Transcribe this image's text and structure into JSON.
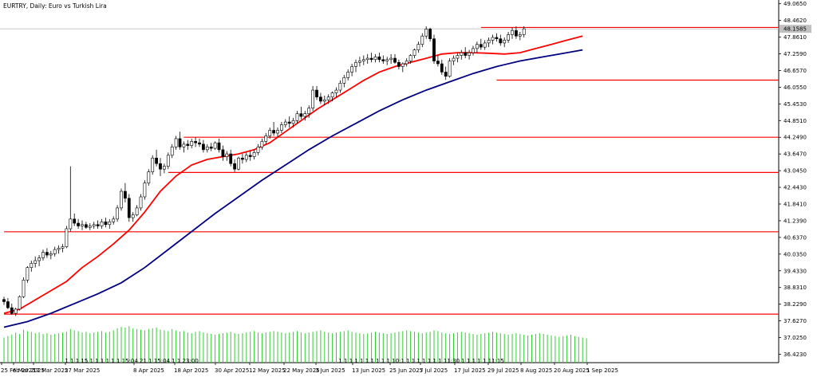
{
  "chart_data": {
    "type": "candlestick",
    "title": "EURTRY, Daily:  Euro vs Turkish Lira",
    "current_price_label": "48.1585",
    "y_ticks": [
      "49.0650",
      "48.4620",
      "47.8610",
      "47.2590",
      "46.6570",
      "46.0550",
      "45.4530",
      "44.8510",
      "44.2490",
      "43.6470",
      "43.0450",
      "42.4430",
      "41.8410",
      "41.2390",
      "40.6370",
      "40.0350",
      "39.4330",
      "38.8310",
      "38.2290",
      "37.6270",
      "37.0250",
      "36.4230"
    ],
    "x_labels": [
      "25 Feb 2025",
      "6 Mar 2025",
      "17 Mar 2025",
      "27 Mar 2025",
      "8 Apr 2025",
      "18 Apr 2025",
      "30 Apr 2025",
      "12 May 2025",
      "22 May 2025",
      "3 Jun 2025",
      "13 Jun 2025",
      "25 Jun 2025",
      "7 Jul 2025",
      "17 Jul 2025",
      "29 Jul 2025",
      "8 Aug 2025",
      "20 Aug 2025",
      "1 Sep 2025"
    ],
    "ylim": [
      36.12,
      49.2
    ],
    "levels": [
      {
        "price": 48.21,
        "from_day": 122,
        "color": "#ff0000"
      },
      {
        "price": 46.31,
        "from_day": 126,
        "color": "#ff0000"
      },
      {
        "price": 44.25,
        "from_day": 46,
        "color": "#ff0000"
      },
      {
        "price": 42.98,
        "from_day": 42,
        "color": "#ff0000"
      },
      {
        "price": 40.84,
        "from_day": 0,
        "color": "#ff0000"
      },
      {
        "price": 37.87,
        "from_day": 0,
        "color": "#ff0000"
      }
    ],
    "candles": [
      [
        38.4,
        38.5,
        38.2,
        38.32
      ],
      [
        38.32,
        38.45,
        38.05,
        38.1
      ],
      [
        38.1,
        38.25,
        37.85,
        37.9
      ],
      [
        37.9,
        38.1,
        37.8,
        38.05
      ],
      [
        38.05,
        38.55,
        38.0,
        38.5
      ],
      [
        38.5,
        39.2,
        38.45,
        39.1
      ],
      [
        39.1,
        39.6,
        39.0,
        39.55
      ],
      [
        39.55,
        39.8,
        39.4,
        39.7
      ],
      [
        39.7,
        39.95,
        39.55,
        39.8
      ],
      [
        39.8,
        40.0,
        39.6,
        39.9
      ],
      [
        39.9,
        40.2,
        39.8,
        40.1
      ],
      [
        40.1,
        40.25,
        39.9,
        40.0
      ],
      [
        40.0,
        40.15,
        39.85,
        40.05
      ],
      [
        40.05,
        40.3,
        39.95,
        40.2
      ],
      [
        40.2,
        40.35,
        40.05,
        40.25
      ],
      [
        40.25,
        40.4,
        40.1,
        40.3
      ],
      [
        40.3,
        41.05,
        40.25,
        40.95
      ],
      [
        40.95,
        43.2,
        40.85,
        41.3
      ],
      [
        41.3,
        41.5,
        41.05,
        41.15
      ],
      [
        41.15,
        41.3,
        40.95,
        41.05
      ],
      [
        41.05,
        41.25,
        40.9,
        41.1
      ],
      [
        41.1,
        41.2,
        40.95,
        41.0
      ],
      [
        41.0,
        41.15,
        40.9,
        41.05
      ],
      [
        41.05,
        41.2,
        40.95,
        41.1
      ],
      [
        41.1,
        41.25,
        40.95,
        41.05
      ],
      [
        41.05,
        41.3,
        40.95,
        41.2
      ],
      [
        41.2,
        41.35,
        41.0,
        41.1
      ],
      [
        41.1,
        41.3,
        40.95,
        41.2
      ],
      [
        41.2,
        41.4,
        41.1,
        41.3
      ],
      [
        41.3,
        41.8,
        41.2,
        41.7
      ],
      [
        41.7,
        42.4,
        41.6,
        42.3
      ],
      [
        42.3,
        42.6,
        41.9,
        42.05
      ],
      [
        42.05,
        42.2,
        41.2,
        41.35
      ],
      [
        41.35,
        41.55,
        41.2,
        41.45
      ],
      [
        41.45,
        41.8,
        41.4,
        41.7
      ],
      [
        41.7,
        42.2,
        41.6,
        42.1
      ],
      [
        42.1,
        42.7,
        42.0,
        42.6
      ],
      [
        42.6,
        43.1,
        42.5,
        43.0
      ],
      [
        43.0,
        43.6,
        42.9,
        43.5
      ],
      [
        43.5,
        43.8,
        43.2,
        43.3
      ],
      [
        43.3,
        43.5,
        42.85,
        43.1
      ],
      [
        43.1,
        43.3,
        42.95,
        43.2
      ],
      [
        43.2,
        43.7,
        43.1,
        43.6
      ],
      [
        43.6,
        44.0,
        43.5,
        43.9
      ],
      [
        43.9,
        44.3,
        43.8,
        44.2
      ],
      [
        44.2,
        44.45,
        43.8,
        43.9
      ],
      [
        43.9,
        44.1,
        43.7,
        44.0
      ],
      [
        44.0,
        44.15,
        43.8,
        43.95
      ],
      [
        43.95,
        44.2,
        43.85,
        44.1
      ],
      [
        44.1,
        44.25,
        43.9,
        44.05
      ],
      [
        44.05,
        44.2,
        43.9,
        44.0
      ],
      [
        44.0,
        44.15,
        43.7,
        43.8
      ],
      [
        43.8,
        44.0,
        43.7,
        43.9
      ],
      [
        43.9,
        44.05,
        43.75,
        43.85
      ],
      [
        43.85,
        44.1,
        43.8,
        44.05
      ],
      [
        44.05,
        44.2,
        43.7,
        43.8
      ],
      [
        43.8,
        43.95,
        43.4,
        43.55
      ],
      [
        43.55,
        43.75,
        43.4,
        43.65
      ],
      [
        43.65,
        43.8,
        43.2,
        43.3
      ],
      [
        43.3,
        43.45,
        43.0,
        43.1
      ],
      [
        43.1,
        43.55,
        43.05,
        43.5
      ],
      [
        43.5,
        43.65,
        43.3,
        43.45
      ],
      [
        43.45,
        43.7,
        43.35,
        43.6
      ],
      [
        43.6,
        43.75,
        43.4,
        43.55
      ],
      [
        43.55,
        43.8,
        43.45,
        43.7
      ],
      [
        43.7,
        44.0,
        43.6,
        43.9
      ],
      [
        43.9,
        44.2,
        43.8,
        44.1
      ],
      [
        44.1,
        44.4,
        44.0,
        44.3
      ],
      [
        44.3,
        44.6,
        44.2,
        44.5
      ],
      [
        44.5,
        44.8,
        44.3,
        44.4
      ],
      [
        44.4,
        44.6,
        44.25,
        44.5
      ],
      [
        44.5,
        44.8,
        44.4,
        44.7
      ],
      [
        44.7,
        44.9,
        44.6,
        44.8
      ],
      [
        44.8,
        45.0,
        44.6,
        44.75
      ],
      [
        44.75,
        44.95,
        44.6,
        44.85
      ],
      [
        44.85,
        45.2,
        44.75,
        45.1
      ],
      [
        45.1,
        45.35,
        44.9,
        45.0
      ],
      [
        45.0,
        45.2,
        44.85,
        45.1
      ],
      [
        45.1,
        45.4,
        44.95,
        45.3
      ],
      [
        45.3,
        46.1,
        45.2,
        45.95
      ],
      [
        45.95,
        46.1,
        45.6,
        45.7
      ],
      [
        45.7,
        45.85,
        45.45,
        45.55
      ],
      [
        45.55,
        45.75,
        45.4,
        45.6
      ],
      [
        45.6,
        45.8,
        45.45,
        45.7
      ],
      [
        45.7,
        45.9,
        45.55,
        45.85
      ],
      [
        45.85,
        46.05,
        45.7,
        45.95
      ],
      [
        45.95,
        46.3,
        45.85,
        46.2
      ],
      [
        46.2,
        46.5,
        46.05,
        46.4
      ],
      [
        46.4,
        46.7,
        46.3,
        46.6
      ],
      [
        46.6,
        46.9,
        46.45,
        46.8
      ],
      [
        46.8,
        47.05,
        46.6,
        46.95
      ],
      [
        46.95,
        47.15,
        46.8,
        47.0
      ],
      [
        47.0,
        47.2,
        46.85,
        47.05
      ],
      [
        47.05,
        47.25,
        46.9,
        47.1
      ],
      [
        47.1,
        47.3,
        46.95,
        47.05
      ],
      [
        47.05,
        47.25,
        46.95,
        47.15
      ],
      [
        47.15,
        47.3,
        46.95,
        47.05
      ],
      [
        47.05,
        47.2,
        46.9,
        47.0
      ],
      [
        47.0,
        47.15,
        46.85,
        47.05
      ],
      [
        47.05,
        47.25,
        46.9,
        47.1
      ],
      [
        47.1,
        47.25,
        46.9,
        46.95
      ],
      [
        46.95,
        47.05,
        46.7,
        46.8
      ],
      [
        46.8,
        46.95,
        46.6,
        46.9
      ],
      [
        46.9,
        47.1,
        46.8,
        47.0
      ],
      [
        47.0,
        47.25,
        46.9,
        47.2
      ],
      [
        47.2,
        47.45,
        47.1,
        47.4
      ],
      [
        47.4,
        47.7,
        47.3,
        47.6
      ],
      [
        47.6,
        48.0,
        47.5,
        47.9
      ],
      [
        47.9,
        48.25,
        47.8,
        48.15
      ],
      [
        48.15,
        48.2,
        47.7,
        47.8
      ],
      [
        47.8,
        47.95,
        46.9,
        47.0
      ],
      [
        47.0,
        47.2,
        46.8,
        46.9
      ],
      [
        46.9,
        47.05,
        46.5,
        46.6
      ],
      [
        46.6,
        46.8,
        46.32,
        46.45
      ],
      [
        46.45,
        47.1,
        46.4,
        47.0
      ],
      [
        47.0,
        47.2,
        46.85,
        47.1
      ],
      [
        47.1,
        47.3,
        46.95,
        47.2
      ],
      [
        47.2,
        47.4,
        47.05,
        47.3
      ],
      [
        47.3,
        47.5,
        47.1,
        47.2
      ],
      [
        47.2,
        47.4,
        47.05,
        47.3
      ],
      [
        47.3,
        47.55,
        47.2,
        47.45
      ],
      [
        47.45,
        47.7,
        47.3,
        47.6
      ],
      [
        47.6,
        47.8,
        47.4,
        47.5
      ],
      [
        47.5,
        47.75,
        47.4,
        47.65
      ],
      [
        47.65,
        47.85,
        47.5,
        47.75
      ],
      [
        47.75,
        47.95,
        47.6,
        47.85
      ],
      [
        47.85,
        48.0,
        47.7,
        47.8
      ],
      [
        47.8,
        47.95,
        47.55,
        47.65
      ],
      [
        47.65,
        47.85,
        47.5,
        47.75
      ],
      [
        47.75,
        48.05,
        47.65,
        47.95
      ],
      [
        47.95,
        48.2,
        47.8,
        48.1
      ],
      [
        48.1,
        48.25,
        47.8,
        47.9
      ],
      [
        47.9,
        48.05,
        47.75,
        47.95
      ],
      [
        47.95,
        48.25,
        47.85,
        48.16
      ]
    ],
    "ma_red": [
      [
        0,
        37.9
      ],
      [
        4,
        38.05
      ],
      [
        10,
        38.55
      ],
      [
        16,
        39.05
      ],
      [
        20,
        39.55
      ],
      [
        24,
        39.95
      ],
      [
        28,
        40.4
      ],
      [
        32,
        40.9
      ],
      [
        36,
        41.55
      ],
      [
        40,
        42.3
      ],
      [
        44,
        42.85
      ],
      [
        48,
        43.25
      ],
      [
        52,
        43.45
      ],
      [
        56,
        43.55
      ],
      [
        60,
        43.65
      ],
      [
        64,
        43.8
      ],
      [
        68,
        44.05
      ],
      [
        72,
        44.45
      ],
      [
        76,
        44.85
      ],
      [
        80,
        45.25
      ],
      [
        84,
        45.6
      ],
      [
        88,
        45.95
      ],
      [
        92,
        46.3
      ],
      [
        96,
        46.6
      ],
      [
        100,
        46.8
      ],
      [
        104,
        46.95
      ],
      [
        108,
        47.1
      ],
      [
        112,
        47.25
      ],
      [
        116,
        47.3
      ],
      [
        120,
        47.3
      ],
      [
        124,
        47.28
      ],
      [
        128,
        47.25
      ],
      [
        132,
        47.3
      ],
      [
        136,
        47.45
      ],
      [
        140,
        47.6
      ],
      [
        144,
        47.75
      ],
      [
        148,
        47.9
      ]
    ],
    "ma_blue": [
      [
        0,
        37.4
      ],
      [
        6,
        37.6
      ],
      [
        12,
        37.9
      ],
      [
        18,
        38.25
      ],
      [
        24,
        38.6
      ],
      [
        30,
        39.0
      ],
      [
        36,
        39.55
      ],
      [
        42,
        40.2
      ],
      [
        48,
        40.85
      ],
      [
        54,
        41.5
      ],
      [
        60,
        42.1
      ],
      [
        66,
        42.7
      ],
      [
        72,
        43.25
      ],
      [
        78,
        43.8
      ],
      [
        84,
        44.3
      ],
      [
        90,
        44.75
      ],
      [
        96,
        45.2
      ],
      [
        102,
        45.6
      ],
      [
        108,
        45.95
      ],
      [
        114,
        46.25
      ],
      [
        120,
        46.55
      ],
      [
        126,
        46.8
      ],
      [
        132,
        47.0
      ],
      [
        138,
        47.15
      ],
      [
        144,
        47.3
      ],
      [
        148,
        47.4
      ]
    ],
    "volumes": [
      70,
      74,
      78,
      84,
      80,
      92,
      88,
      86,
      82,
      84,
      80,
      82,
      78,
      80,
      82,
      84,
      86,
      94,
      90,
      88,
      84,
      86,
      82,
      84,
      86,
      88,
      84,
      86,
      90,
      96,
      100,
      98,
      102,
      96,
      94,
      92,
      90,
      94,
      96,
      98,
      92,
      90,
      88,
      94,
      90,
      86,
      88,
      84,
      82,
      86,
      88,
      84,
      82,
      80,
      78,
      80,
      82,
      84,
      86,
      82,
      80,
      82,
      84,
      86,
      88,
      84,
      82,
      84,
      86,
      88,
      86,
      84,
      82,
      84,
      86,
      88,
      84,
      82,
      84,
      86,
      88,
      90,
      86,
      84,
      82,
      84,
      86,
      88,
      90,
      86,
      84,
      82,
      80,
      82,
      84,
      86,
      84,
      82,
      80,
      82,
      84,
      86,
      88,
      90,
      88,
      86,
      84,
      82,
      84,
      86,
      90,
      88,
      84,
      82,
      80,
      82,
      84,
      86,
      84,
      82,
      80,
      78,
      80,
      82,
      84,
      86,
      84,
      82,
      80,
      78,
      80,
      82,
      80,
      78,
      76,
      78,
      80,
      82,
      80,
      78,
      76,
      74,
      72,
      74,
      76,
      78,
      74,
      72,
      70,
      68
    ],
    "volume_labels": [
      {
        "day": 16,
        "text": "1 1 1 15 1 1 1 1 1 1 15:04 21 1 15:04 1 1 23:00"
      },
      {
        "day": 86,
        "text": "1 1 1 1 1 1 1 1 1 1 10:1 1 1 1 1 1 1 1 11:30 1 1 1 1 1 11:15"
      }
    ]
  }
}
